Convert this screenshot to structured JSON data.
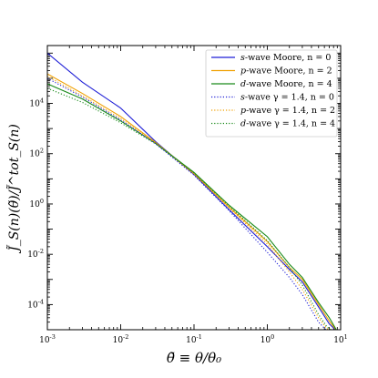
{
  "chart_data": {
    "type": "line",
    "xscale": "log",
    "yscale": "log",
    "xlim": [
      0.001,
      10
    ],
    "ylim": [
      1e-05,
      2000000
    ],
    "xlabel": "θ̃ ≡ θ/θ₀",
    "ylabel": "J̃_S(n)(θ̃)/J̃^tot_S(n)",
    "x_ticks": [
      {
        "value": 0.001,
        "base": "10",
        "exp": "-3"
      },
      {
        "value": 0.01,
        "base": "10",
        "exp": "-2"
      },
      {
        "value": 0.1,
        "base": "10",
        "exp": "-1"
      },
      {
        "value": 1,
        "base": "10",
        "exp": "0"
      },
      {
        "value": 10,
        "base": "10",
        "exp": "1"
      }
    ],
    "y_ticks": [
      {
        "value": 0.0001,
        "base": "10",
        "exp": "-4"
      },
      {
        "value": 0.01,
        "base": "10",
        "exp": "-2"
      },
      {
        "value": 1,
        "base": "10",
        "exp": "0"
      },
      {
        "value": 100,
        "base": "10",
        "exp": "2"
      },
      {
        "value": 10000,
        "base": "10",
        "exp": "4"
      }
    ],
    "legend_position": "top-right",
    "series": [
      {
        "name": "s-wave Moore, n = 0",
        "italic": "s",
        "rest": "-wave Moore, n = 0",
        "color": "#1f1fd6",
        "dash": "solid",
        "x": [
          0.001,
          0.003,
          0.01,
          0.03,
          0.1,
          0.3,
          1,
          2,
          3,
          5,
          7,
          9
        ],
        "y": [
          1000000,
          70000,
          6500,
          300,
          15,
          0.6,
          0.02,
          0.0025,
          0.0008,
          8e-05,
          1.7e-05,
          8.5e-06
        ]
      },
      {
        "name": "p-wave Moore, n = 2",
        "italic": "p",
        "rest": "-wave Moore, n = 2",
        "color": "#f0a000",
        "dash": "solid",
        "x": [
          0.001,
          0.003,
          0.01,
          0.03,
          0.1,
          0.3,
          1,
          2,
          3,
          5,
          7,
          9
        ],
        "y": [
          150000,
          25000,
          3000,
          280,
          16,
          0.75,
          0.032,
          0.003,
          0.001,
          0.0001,
          2.2e-05,
          8.5e-06
        ]
      },
      {
        "name": "d-wave Moore, n = 4",
        "italic": "d",
        "rest": "-wave Moore, n = 4",
        "color": "#1a8a1a",
        "dash": "solid",
        "x": [
          0.001,
          0.003,
          0.01,
          0.03,
          0.1,
          0.3,
          1,
          2,
          3,
          5,
          7,
          9
        ],
        "y": [
          60000,
          15000,
          2000,
          260,
          18,
          0.9,
          0.05,
          0.004,
          0.0012,
          0.00012,
          3e-05,
          8.5e-06
        ]
      },
      {
        "name": "s-wave γ = 1.4, n = 0",
        "italic": "s",
        "rest": "-wave γ = 1.4, n = 0",
        "color": "#1f1fd6",
        "dash": "dotted",
        "x": [
          0.001,
          0.003,
          0.01,
          0.03,
          0.1,
          0.3,
          1,
          2,
          3,
          5,
          6.5,
          8
        ],
        "y": [
          100000,
          18000,
          2200,
          250,
          14,
          0.55,
          0.012,
          0.0012,
          0.00025,
          2e-05,
          9e-06,
          8.5e-06
        ]
      },
      {
        "name": "p-wave γ = 1.4, n = 2",
        "italic": "p",
        "rest": "-wave γ = 1.4, n = 2",
        "color": "#f0a000",
        "dash": "dotted",
        "x": [
          0.001,
          0.003,
          0.01,
          0.03,
          0.1,
          0.3,
          1,
          2,
          3,
          5,
          6.5,
          8
        ],
        "y": [
          120000,
          20000,
          2500,
          265,
          16,
          0.7,
          0.025,
          0.002,
          0.0004,
          3e-05,
          1.1e-05,
          8.5e-06
        ]
      },
      {
        "name": "d-wave γ = 1.4, n = 4",
        "italic": "d",
        "rest": "-wave γ = 1.4, n = 4",
        "color": "#1a8a1a",
        "dash": "dotted",
        "x": [
          0.001,
          0.003,
          0.01,
          0.03,
          0.1,
          0.3,
          1,
          2,
          3,
          5,
          6.5,
          8
        ],
        "y": [
          40000,
          11000,
          1700,
          245,
          17,
          0.85,
          0.035,
          0.003,
          0.0006,
          4e-05,
          1.3e-05,
          8.5e-06
        ]
      }
    ]
  }
}
